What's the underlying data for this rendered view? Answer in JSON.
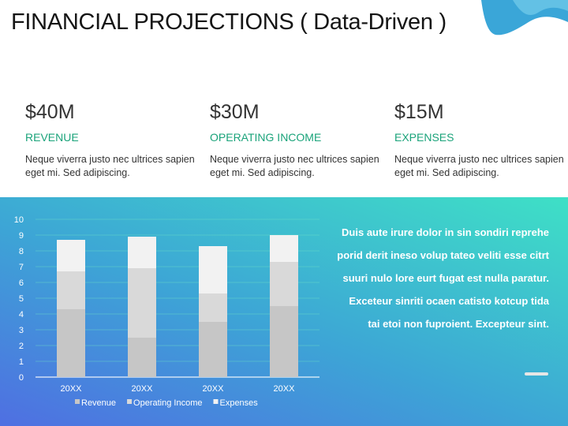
{
  "title": "FINANCIAL PROJECTIONS ( Data-Driven )",
  "colors": {
    "accent": "#1aa37a",
    "panel_start": "#4f6fe2",
    "panel_end": "#3ee0c6",
    "wave": "#3aa6d8"
  },
  "stats": [
    {
      "value": "$40M",
      "label": "REVENUE",
      "description": "Neque viverra justo nec ultrices sapien eget mi. Sed adipiscing."
    },
    {
      "value": "$30M",
      "label": "OPERATING INCOME",
      "description": "Neque viverra justo nec ultrices sapien eget mi. Sed adipiscing."
    },
    {
      "value": "$15M",
      "label": "EXPENSES",
      "description": "Neque viverra justo nec ultrices sapien eget mi. Sed adipiscing."
    }
  ],
  "paragraph": "Duis aute irure dolor in sin sondiri reprehe porid derit ineso volup tateo veliti esse citrt suuri nulo lore eurt fugat est nulla paratur. Exceteur sinriti ocaen catisto kotcup tida tai etoi non fuproient. Excepteur sint.",
  "chart_data": {
    "type": "bar",
    "stacked": true,
    "categories": [
      "20XX",
      "20XX",
      "20XX",
      "20XX"
    ],
    "series": [
      {
        "name": "Revenue",
        "values": [
          4.3,
          2.5,
          3.5,
          4.5
        ],
        "color": "#c6c6c6"
      },
      {
        "name": "Operating Income",
        "values": [
          2.4,
          4.4,
          1.8,
          2.8
        ],
        "color": "#d9d9d9"
      },
      {
        "name": "Expenses",
        "values": [
          2.0,
          2.0,
          3.0,
          1.7
        ],
        "color": "#f2f2f2"
      }
    ],
    "yticks": [
      0,
      1,
      2,
      3,
      4,
      5,
      6,
      7,
      8,
      9,
      10
    ],
    "ylim": [
      0,
      10
    ],
    "grid": true,
    "legend": "bottom"
  }
}
